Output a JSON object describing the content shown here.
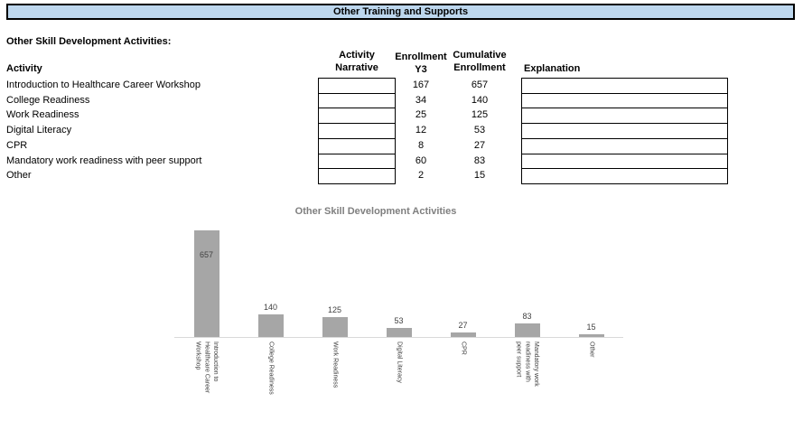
{
  "banner": {
    "title": "Other Training and Supports",
    "fill_color": "#bdd7ee"
  },
  "section_heading": "Other Skill Development Activities:",
  "table": {
    "headers": {
      "activity": "Activity",
      "narrative": "Activity\nNarrative",
      "enrollment_y3": "Enrollment\nY3",
      "cumulative_enrollment": "Cumulative\nEnrollment",
      "explanation": "Explanation"
    },
    "rows": [
      {
        "activity": "Introduction to Healthcare Career Workshop",
        "narrative": "",
        "enrollment_y3": "167",
        "cumulative_enrollment": "657",
        "explanation": ""
      },
      {
        "activity": "College Readiness",
        "narrative": "",
        "enrollment_y3": "34",
        "cumulative_enrollment": "140",
        "explanation": ""
      },
      {
        "activity": "Work Readiness",
        "narrative": "",
        "enrollment_y3": "25",
        "cumulative_enrollment": "125",
        "explanation": ""
      },
      {
        "activity": "Digital Literacy",
        "narrative": "",
        "enrollment_y3": "12",
        "cumulative_enrollment": "53",
        "explanation": ""
      },
      {
        "activity": "CPR",
        "narrative": "",
        "enrollment_y3": "8",
        "cumulative_enrollment": "27",
        "explanation": ""
      },
      {
        "activity": "Mandatory work readiness with peer support",
        "narrative": "",
        "enrollment_y3": "60",
        "cumulative_enrollment": "83",
        "explanation": ""
      },
      {
        "activity": "Other",
        "narrative": "",
        "enrollment_y3": "2",
        "cumulative_enrollment": "15",
        "explanation": ""
      }
    ]
  },
  "chart_data": {
    "type": "bar",
    "title": "Other Skill Development Activities",
    "categories": [
      "Introduction to\nHealthcare Career\nWorkshop",
      "College Readiness",
      "Work Readiness",
      "Digital Literacy",
      "CPR",
      "Mandatory work\nreadiness with\npeer support",
      "Other"
    ],
    "values": [
      657,
      140,
      125,
      53,
      27,
      83,
      15
    ],
    "data_labels": [
      "657",
      "140",
      "125",
      "53",
      "27",
      "83",
      "15"
    ],
    "xlabel": "",
    "ylabel": "",
    "ylim": [
      0,
      700
    ],
    "grid": false,
    "legend": false,
    "bar_color": "#a6a6a6",
    "title_color": "#7f7f7f",
    "label_color": "#404040",
    "axis_line_color": "#d9d9d9"
  }
}
